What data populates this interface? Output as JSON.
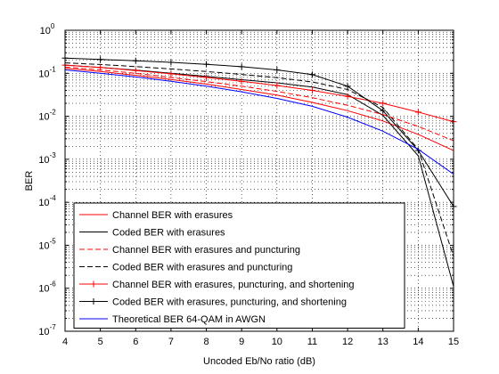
{
  "chart_data": {
    "type": "line",
    "title": "",
    "xlabel": "Uncoded Eb/No ratio (dB)",
    "ylabel": "BER",
    "xlim": [
      4,
      15
    ],
    "ylim": [
      1e-07,
      1
    ],
    "yscale": "log",
    "grid": true,
    "x_ticks": [
      4,
      5,
      6,
      7,
      8,
      9,
      10,
      11,
      12,
      13,
      14,
      15
    ],
    "y_ticks": [
      {
        "value": 1e-07,
        "base": "10",
        "exp": "-7"
      },
      {
        "value": 1e-06,
        "base": "10",
        "exp": "-6"
      },
      {
        "value": 1e-05,
        "base": "10",
        "exp": "-5"
      },
      {
        "value": 0.0001,
        "base": "10",
        "exp": "-4"
      },
      {
        "value": 0.001,
        "base": "10",
        "exp": "-3"
      },
      {
        "value": 0.01,
        "base": "10",
        "exp": "-2"
      },
      {
        "value": 0.1,
        "base": "10",
        "exp": "-1"
      },
      {
        "value": 1,
        "base": "10",
        "exp": "0"
      }
    ],
    "legend_position": "bottom-left",
    "x": [
      4,
      5,
      6,
      7,
      8,
      9,
      10,
      11,
      12,
      13,
      14,
      15
    ],
    "series": [
      {
        "name": "Channel BER with erasures",
        "color": "#ff0000",
        "dash": "solid",
        "marker": "none",
        "values": [
          0.13,
          0.11,
          0.09,
          0.072,
          0.056,
          0.042,
          0.031,
          0.021,
          0.0135,
          0.0078,
          0.0038,
          0.0016
        ]
      },
      {
        "name": "Coded BER with erasures",
        "color": "#000000",
        "dash": "solid",
        "marker": "none",
        "values": [
          0.155,
          0.137,
          0.118,
          0.1,
          0.085,
          0.071,
          0.06,
          0.048,
          0.032,
          0.0105,
          0.0012,
          1.1e-06
        ]
      },
      {
        "name": "Channel BER with erasures and puncturing",
        "color": "#ff0000",
        "dash": "dashed",
        "marker": "none",
        "values": [
          0.14,
          0.12,
          0.1,
          0.08,
          0.064,
          0.05,
          0.038,
          0.027,
          0.018,
          0.011,
          0.0058,
          0.0027
        ]
      },
      {
        "name": "Coded BER with erasures and puncturing",
        "color": "#000000",
        "dash": "dashed",
        "marker": "none",
        "values": [
          0.175,
          0.16,
          0.143,
          0.126,
          0.11,
          0.094,
          0.079,
          0.063,
          0.042,
          0.016,
          0.0017,
          5.5e-06
        ]
      },
      {
        "name": "Channel BER with erasures, puncturing, and shortening",
        "color": "#ff0000",
        "dash": "solid",
        "marker": "plus",
        "values": [
          0.155,
          0.136,
          0.116,
          0.097,
          0.08,
          0.065,
          0.052,
          0.04,
          0.029,
          0.02,
          0.0125,
          0.0075
        ]
      },
      {
        "name": "Coded BER with erasures, puncturing, and shortening",
        "color": "#000000",
        "dash": "solid",
        "marker": "plus",
        "values": [
          0.225,
          0.21,
          0.195,
          0.18,
          0.162,
          0.142,
          0.12,
          0.093,
          0.05,
          0.0135,
          0.0016,
          8e-05
        ]
      },
      {
        "name": "Theoretical BER 64-QAM in AWGN",
        "color": "#0000ff",
        "dash": "solid",
        "marker": "none",
        "values": [
          0.12,
          0.1,
          0.082,
          0.065,
          0.05,
          0.037,
          0.026,
          0.017,
          0.0095,
          0.0045,
          0.0017,
          0.00045
        ]
      }
    ]
  }
}
